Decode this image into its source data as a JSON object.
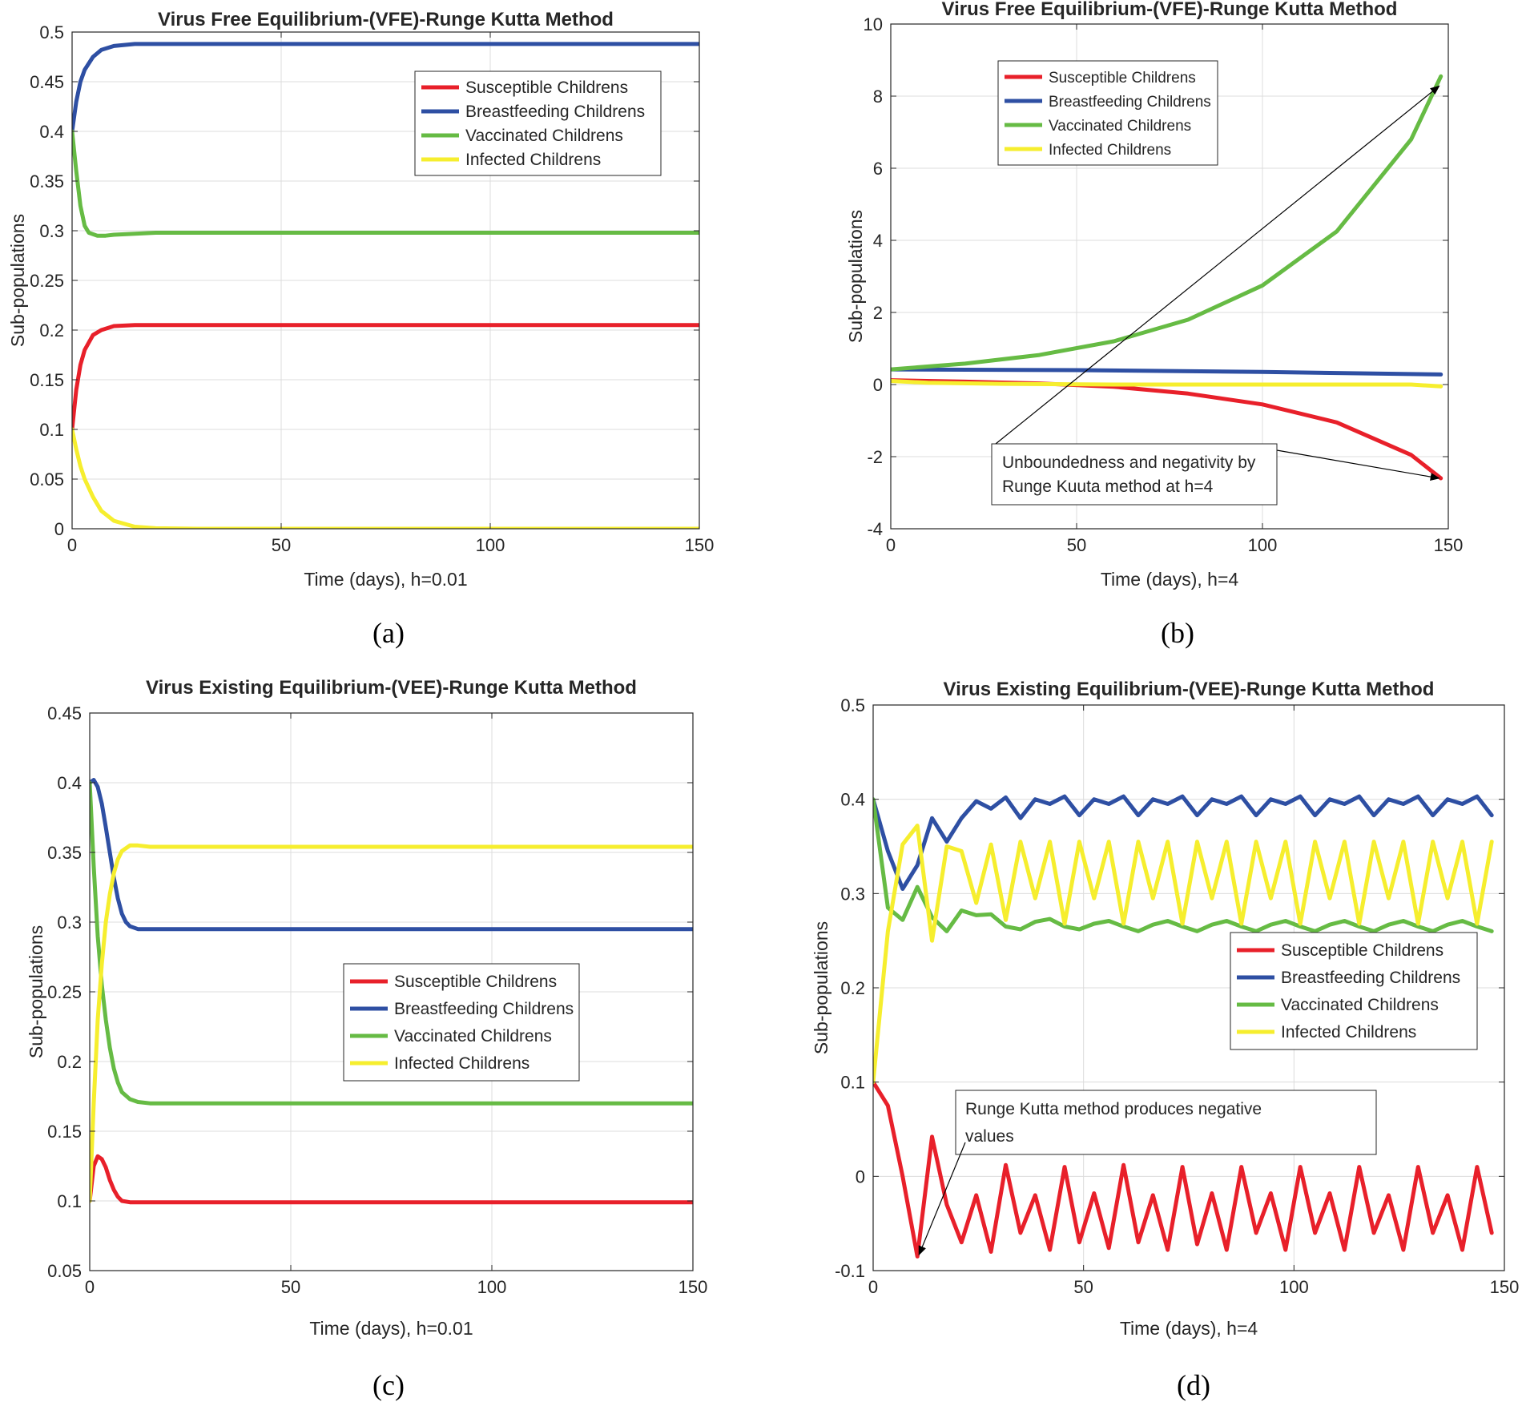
{
  "colors": {
    "susceptible": "#e8202a",
    "breastfeeding": "#2e4fa3",
    "vaccinated": "#66bb44",
    "infected": "#f6ee2e",
    "axis": "#262626",
    "grid": "#dcdcdc"
  },
  "chart_data": [
    {
      "id": "a",
      "type": "line",
      "caption": "(a)",
      "title": "Virus Free Equilibrium-(VFE)-Runge Kutta Method",
      "xlabel": "Time (days), h=0.01",
      "ylabel": "Sub-populations",
      "xlim": [
        0,
        150
      ],
      "ylim": [
        0,
        0.5
      ],
      "grid": true,
      "legend_position": "top-right",
      "xticks": [
        0,
        50,
        100,
        150
      ],
      "xtick_labels": [
        "0",
        "50",
        "100",
        "150"
      ],
      "yticks": [
        0,
        0.05,
        0.1,
        0.15,
        0.2,
        0.25,
        0.3,
        0.35,
        0.4,
        0.45,
        0.5
      ],
      "ytick_labels": [
        "0",
        "0.05",
        "0.1",
        "0.15",
        "0.2",
        "0.25",
        "0.3",
        "0.35",
        "0.4",
        "0.45",
        "0.5"
      ],
      "series": [
        {
          "name": "Susceptible Childrens",
          "color": "susceptible",
          "x": [
            0,
            1,
            2,
            3,
            5,
            7,
            10,
            15,
            20,
            30,
            150
          ],
          "values": [
            0.1,
            0.14,
            0.165,
            0.18,
            0.195,
            0.2,
            0.204,
            0.205,
            0.205,
            0.205,
            0.205
          ]
        },
        {
          "name": "Breastfeeding Childrens",
          "color": "breastfeeding",
          "x": [
            0,
            1,
            2,
            3,
            5,
            7,
            10,
            15,
            20,
            30,
            150
          ],
          "values": [
            0.4,
            0.43,
            0.45,
            0.462,
            0.475,
            0.482,
            0.486,
            0.488,
            0.488,
            0.488,
            0.488
          ]
        },
        {
          "name": "Vaccinated Childrens",
          "color": "vaccinated",
          "x": [
            0,
            1,
            2,
            3,
            4,
            6,
            8,
            10,
            15,
            20,
            30,
            150
          ],
          "values": [
            0.4,
            0.36,
            0.325,
            0.305,
            0.298,
            0.295,
            0.295,
            0.296,
            0.297,
            0.298,
            0.298,
            0.298
          ]
        },
        {
          "name": "Infected Childrens",
          "color": "infected",
          "x": [
            0,
            1,
            2,
            3,
            5,
            7,
            10,
            15,
            20,
            30,
            150
          ],
          "values": [
            0.1,
            0.08,
            0.063,
            0.05,
            0.032,
            0.018,
            0.008,
            0.002,
            0.0005,
            0,
            0
          ]
        }
      ],
      "annotations": []
    },
    {
      "id": "b",
      "type": "line",
      "caption": "(b)",
      "title": "Virus Free Equilibrium-(VFE)-Runge Kutta Method",
      "xlabel": "Time (days), h=4",
      "ylabel": "Sub-populations",
      "xlim": [
        0,
        150
      ],
      "ylim": [
        -4,
        10
      ],
      "grid": true,
      "legend_position": "top-left",
      "xticks": [
        0,
        50,
        100,
        150
      ],
      "xtick_labels": [
        "0",
        "50",
        "100",
        "150"
      ],
      "yticks": [
        -4,
        -2,
        0,
        2,
        4,
        6,
        8,
        10
      ],
      "ytick_labels": [
        "-4",
        "-2",
        "0",
        "2",
        "4",
        "6",
        "8",
        "10"
      ],
      "series": [
        {
          "name": "Susceptible Childrens",
          "color": "susceptible",
          "x": [
            0,
            20,
            40,
            60,
            80,
            100,
            120,
            140,
            148
          ],
          "values": [
            0.12,
            0.08,
            0.03,
            -0.06,
            -0.25,
            -0.55,
            -1.05,
            -1.95,
            -2.6
          ]
        },
        {
          "name": "Breastfeeding Childrens",
          "color": "breastfeeding",
          "x": [
            0,
            50,
            100,
            148
          ],
          "values": [
            0.42,
            0.4,
            0.35,
            0.28
          ]
        },
        {
          "name": "Vaccinated Childrens",
          "color": "vaccinated",
          "x": [
            0,
            20,
            40,
            60,
            80,
            100,
            120,
            140,
            148
          ],
          "values": [
            0.42,
            0.58,
            0.82,
            1.2,
            1.8,
            2.75,
            4.25,
            6.8,
            8.55
          ]
        },
        {
          "name": "Infected Childrens",
          "color": "infected",
          "x": [
            0,
            10,
            30,
            60,
            100,
            140,
            148
          ],
          "values": [
            0.1,
            0.05,
            0.02,
            0.0,
            0.0,
            0.0,
            -0.05
          ]
        }
      ],
      "annotations": [
        {
          "lines": [
            "Unboundedness and negativity by",
            "Runge Kuuta method at h=4"
          ]
        }
      ]
    },
    {
      "id": "c",
      "type": "line",
      "caption": "(c)",
      "title": "Virus Existing Equilibrium-(VEE)-Runge Kutta Method",
      "xlabel": "Time (days), h=0.01",
      "ylabel": "Sub-populations",
      "xlim": [
        0,
        150
      ],
      "ylim": [
        0.05,
        0.45
      ],
      "grid": true,
      "legend_position": "right",
      "xticks": [
        0,
        50,
        100,
        150
      ],
      "xtick_labels": [
        "0",
        "50",
        "100",
        "150"
      ],
      "yticks": [
        0.05,
        0.1,
        0.15,
        0.2,
        0.25,
        0.3,
        0.35,
        0.4,
        0.45
      ],
      "ytick_labels": [
        "0.05",
        "0.1",
        "0.15",
        "0.2",
        "0.25",
        "0.3",
        "0.35",
        "0.4",
        "0.45"
      ],
      "series": [
        {
          "name": "Susceptible Childrens",
          "color": "susceptible",
          "x": [
            0,
            1,
            2,
            3,
            4,
            5,
            6,
            7,
            8,
            10,
            12,
            15,
            20,
            150
          ],
          "values": [
            0.1,
            0.125,
            0.132,
            0.13,
            0.124,
            0.115,
            0.108,
            0.103,
            0.1,
            0.099,
            0.099,
            0.099,
            0.099,
            0.099
          ]
        },
        {
          "name": "Breastfeeding Childrens",
          "color": "breastfeeding",
          "x": [
            0,
            1,
            2,
            3,
            4,
            5,
            6,
            7,
            8,
            9,
            10,
            12,
            15,
            20,
            150
          ],
          "values": [
            0.4,
            0.402,
            0.397,
            0.385,
            0.368,
            0.35,
            0.332,
            0.317,
            0.306,
            0.3,
            0.297,
            0.295,
            0.295,
            0.295,
            0.295
          ]
        },
        {
          "name": "Vaccinated Childrens",
          "color": "vaccinated",
          "x": [
            0,
            1,
            2,
            3,
            4,
            5,
            6,
            7,
            8,
            10,
            12,
            15,
            20,
            150
          ],
          "values": [
            0.4,
            0.34,
            0.29,
            0.255,
            0.23,
            0.21,
            0.195,
            0.185,
            0.178,
            0.173,
            0.171,
            0.17,
            0.17,
            0.17
          ]
        },
        {
          "name": "Infected Childrens",
          "color": "infected",
          "x": [
            0,
            1,
            2,
            3,
            4,
            5,
            6,
            7,
            8,
            10,
            12,
            15,
            20,
            150
          ],
          "values": [
            0.1,
            0.17,
            0.23,
            0.27,
            0.3,
            0.32,
            0.335,
            0.345,
            0.351,
            0.355,
            0.355,
            0.354,
            0.354,
            0.354
          ]
        }
      ],
      "annotations": []
    },
    {
      "id": "d",
      "type": "line",
      "caption": "(d)",
      "title": "Virus Existing Equilibrium-(VEE)-Runge Kutta Method",
      "xlabel": "Time (days), h=4",
      "ylabel": "Sub-populations",
      "xlim": [
        0,
        150
      ],
      "ylim": [
        -0.1,
        0.5
      ],
      "grid": true,
      "legend_position": "right",
      "xticks": [
        0,
        50,
        100,
        150
      ],
      "xtick_labels": [
        "0",
        "50",
        "100",
        "150"
      ],
      "yticks": [
        -0.1,
        0,
        0.1,
        0.2,
        0.3,
        0.4,
        0.5
      ],
      "ytick_labels": [
        "-0.1",
        "0",
        "0.1",
        "0.2",
        "0.3",
        "0.4",
        "0.5"
      ],
      "series": [
        {
          "name": "Susceptible Childrens",
          "color": "susceptible",
          "x": [
            0,
            3.5,
            7,
            10.5,
            14,
            17.5,
            21,
            24.5,
            28,
            31.5,
            35,
            38.5,
            42,
            45.5,
            49,
            52.5,
            56,
            59.5,
            63,
            66.5,
            70,
            73.5,
            77,
            80.5,
            84,
            87.5,
            91,
            94.5,
            98,
            101.5,
            105,
            108.5,
            112,
            115.5,
            119,
            122.5,
            126,
            129.5,
            133,
            136.5,
            140,
            143.5,
            147
          ],
          "values": [
            0.1,
            0.075,
            0.0,
            -0.085,
            0.042,
            -0.03,
            -0.07,
            -0.02,
            -0.08,
            0.012,
            -0.06,
            -0.02,
            -0.078,
            0.01,
            -0.07,
            -0.018,
            -0.076,
            0.012,
            -0.07,
            -0.02,
            -0.078,
            0.01,
            -0.072,
            -0.018,
            -0.078,
            0.01,
            -0.06,
            -0.018,
            -0.078,
            0.01,
            -0.06,
            -0.018,
            -0.078,
            0.01,
            -0.06,
            -0.02,
            -0.078,
            0.01,
            -0.06,
            -0.02,
            -0.078,
            0.01,
            -0.06
          ]
        },
        {
          "name": "Breastfeeding Childrens",
          "color": "breastfeeding",
          "x": [
            0,
            3.5,
            7,
            10.5,
            14,
            17.5,
            21,
            24.5,
            28,
            31.5,
            35,
            38.5,
            42,
            45.5,
            49,
            52.5,
            56,
            59.5,
            63,
            66.5,
            70,
            73.5,
            77,
            80.5,
            84,
            87.5,
            91,
            94.5,
            98,
            101.5,
            105,
            108.5,
            112,
            115.5,
            119,
            122.5,
            126,
            129.5,
            133,
            136.5,
            140,
            143.5,
            147
          ],
          "values": [
            0.4,
            0.345,
            0.305,
            0.33,
            0.38,
            0.355,
            0.38,
            0.398,
            0.39,
            0.402,
            0.38,
            0.4,
            0.395,
            0.403,
            0.383,
            0.4,
            0.395,
            0.403,
            0.383,
            0.4,
            0.395,
            0.403,
            0.383,
            0.4,
            0.395,
            0.403,
            0.383,
            0.4,
            0.395,
            0.403,
            0.383,
            0.4,
            0.395,
            0.403,
            0.383,
            0.4,
            0.395,
            0.403,
            0.383,
            0.4,
            0.395,
            0.403,
            0.383
          ]
        },
        {
          "name": "Vaccinated Childrens",
          "color": "vaccinated",
          "x": [
            0,
            3.5,
            7,
            10.5,
            14,
            17.5,
            21,
            24.5,
            28,
            31.5,
            35,
            38.5,
            42,
            45.5,
            49,
            52.5,
            56,
            59.5,
            63,
            66.5,
            70,
            73.5,
            77,
            80.5,
            84,
            87.5,
            91,
            94.5,
            98,
            101.5,
            105,
            108.5,
            112,
            115.5,
            119,
            122.5,
            126,
            129.5,
            133,
            136.5,
            140,
            143.5,
            147
          ],
          "values": [
            0.4,
            0.285,
            0.272,
            0.307,
            0.275,
            0.26,
            0.282,
            0.277,
            0.278,
            0.265,
            0.262,
            0.27,
            0.273,
            0.265,
            0.262,
            0.268,
            0.271,
            0.265,
            0.26,
            0.267,
            0.271,
            0.265,
            0.26,
            0.267,
            0.271,
            0.265,
            0.26,
            0.267,
            0.271,
            0.265,
            0.26,
            0.267,
            0.271,
            0.265,
            0.26,
            0.267,
            0.271,
            0.265,
            0.26,
            0.267,
            0.271,
            0.265,
            0.26
          ]
        },
        {
          "name": "Infected Childrens",
          "color": "infected",
          "x": [
            0,
            3.5,
            7,
            10.5,
            14,
            17.5,
            21,
            24.5,
            28,
            31.5,
            35,
            38.5,
            42,
            45.5,
            49,
            52.5,
            56,
            59.5,
            63,
            66.5,
            70,
            73.5,
            77,
            80.5,
            84,
            87.5,
            91,
            94.5,
            98,
            101.5,
            105,
            108.5,
            112,
            115.5,
            119,
            122.5,
            126,
            129.5,
            133,
            136.5,
            140,
            143.5,
            147
          ],
          "values": [
            0.1,
            0.26,
            0.352,
            0.372,
            0.25,
            0.35,
            0.345,
            0.29,
            0.352,
            0.272,
            0.355,
            0.295,
            0.355,
            0.268,
            0.355,
            0.295,
            0.355,
            0.268,
            0.355,
            0.295,
            0.355,
            0.268,
            0.355,
            0.295,
            0.355,
            0.268,
            0.355,
            0.295,
            0.355,
            0.268,
            0.355,
            0.295,
            0.355,
            0.268,
            0.355,
            0.295,
            0.355,
            0.268,
            0.355,
            0.295,
            0.355,
            0.268,
            0.355
          ]
        }
      ],
      "annotations": [
        {
          "lines": [
            "Runge Kutta method produces negative",
            "values"
          ]
        }
      ]
    }
  ]
}
